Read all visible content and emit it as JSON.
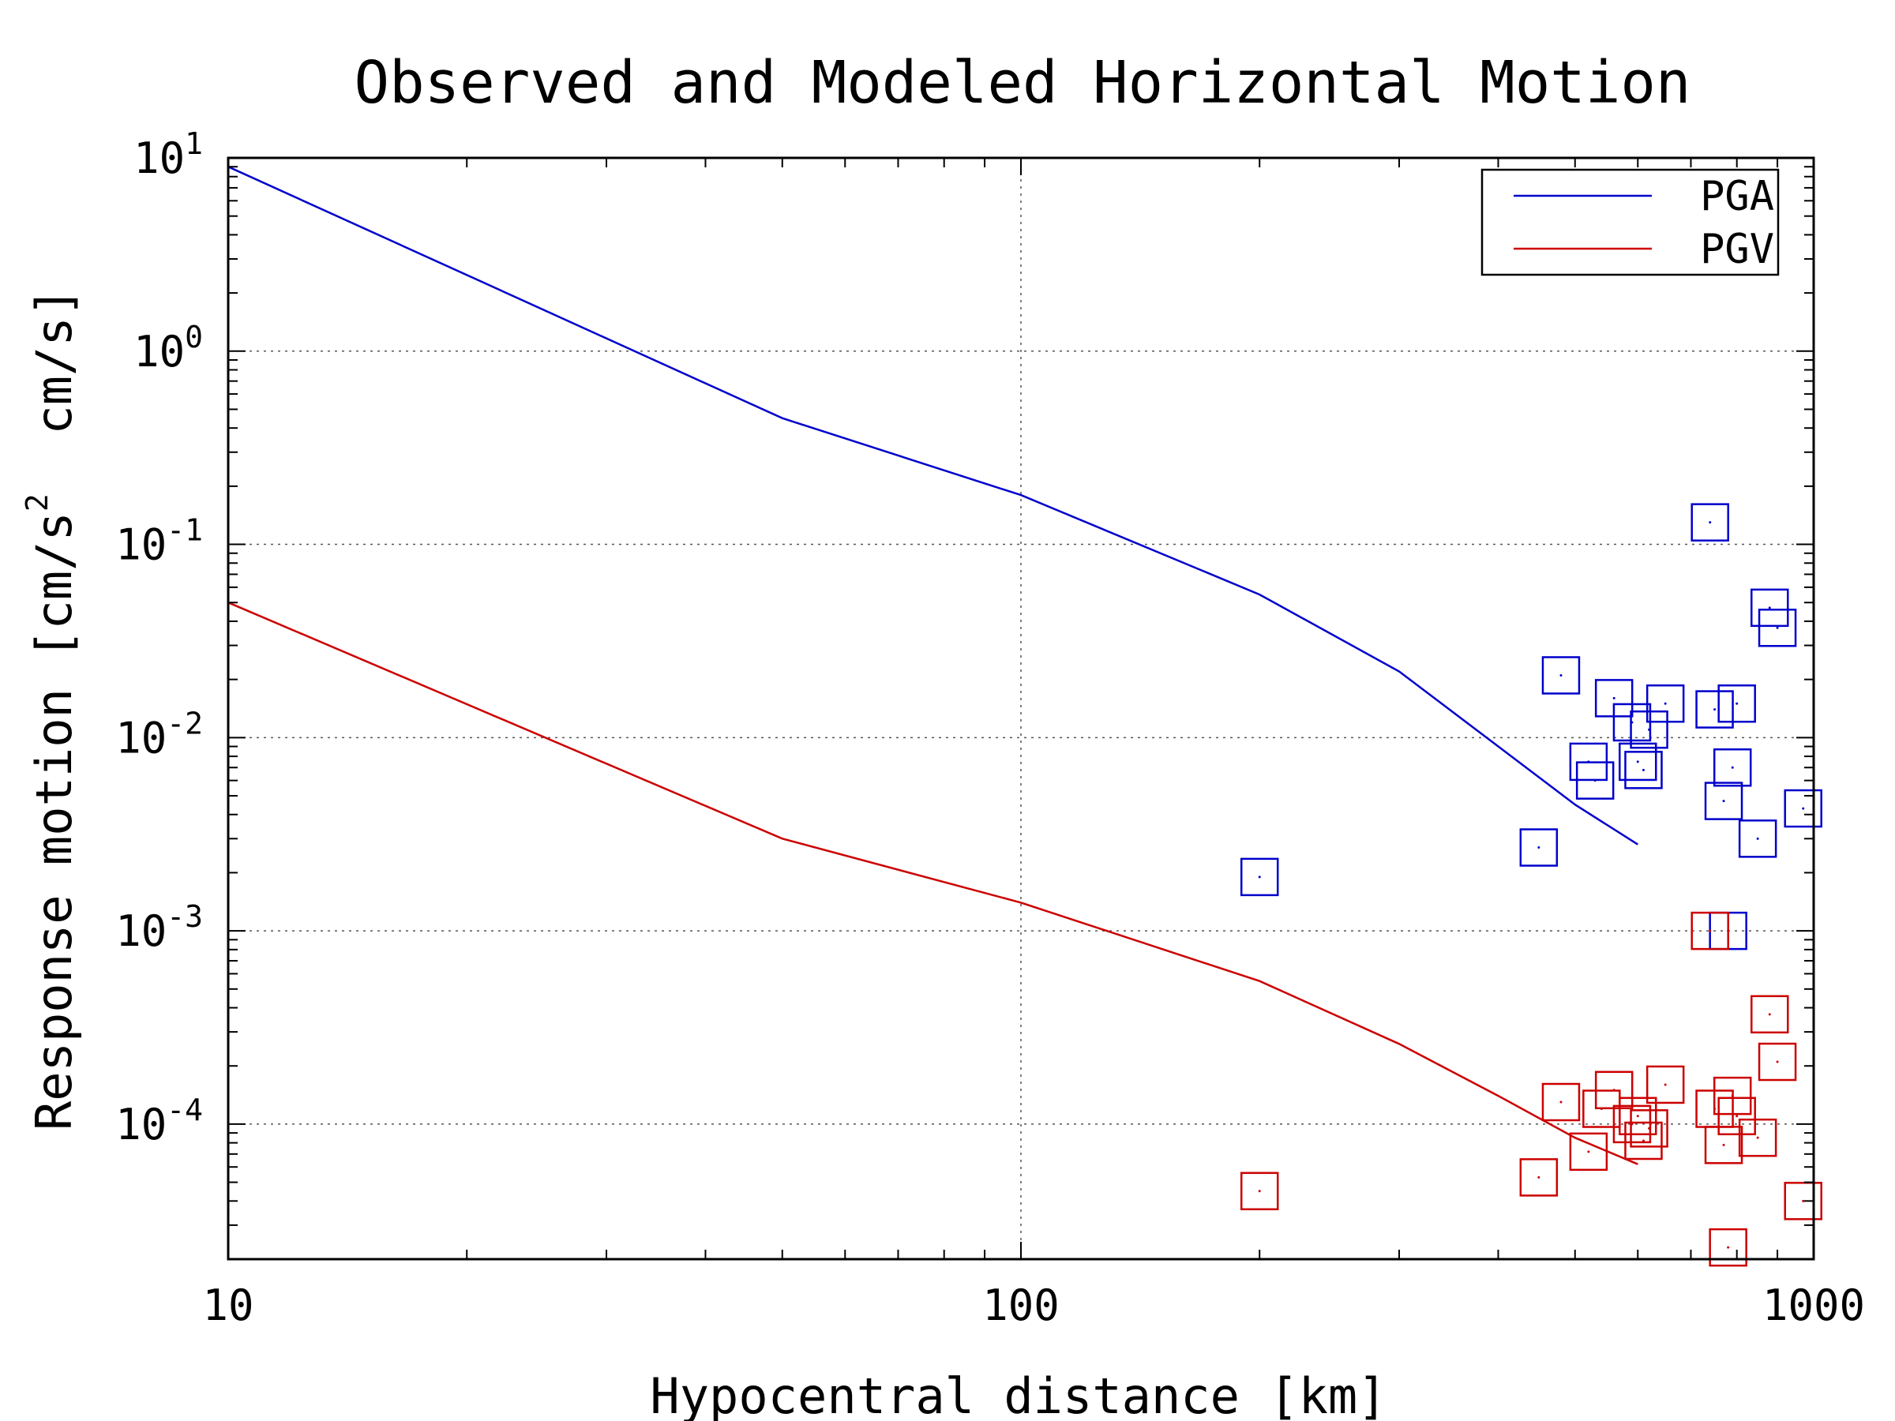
{
  "chart_data": {
    "type": "scatter",
    "title": "Observed and Modeled Horizontal Motion",
    "xlabel": "Hypocentral distance [km]",
    "ylabel": "Response motion [cm/s^2  cm/s]",
    "ylabel_parts": {
      "prefix": "Response motion [cm/s",
      "sup": "2",
      "suffix": "  cm/s]"
    },
    "x_scale": "log",
    "y_scale": "log",
    "xlim": [
      10,
      1000
    ],
    "ylim": [
      2e-05,
      10
    ],
    "grid": true,
    "legend_position": "top-right",
    "x_ticks": [
      {
        "value": 10,
        "label": "10"
      },
      {
        "value": 100,
        "label": "100"
      },
      {
        "value": 1000,
        "label": "1000"
      }
    ],
    "y_ticks": [
      {
        "value": 10,
        "base": "10",
        "exp": "1"
      },
      {
        "value": 1,
        "base": "10",
        "exp": "0"
      },
      {
        "value": 0.1,
        "base": "10",
        "exp": "-1"
      },
      {
        "value": 0.01,
        "base": "10",
        "exp": "-2"
      },
      {
        "value": 0.001,
        "base": "10",
        "exp": "-3"
      },
      {
        "value": 0.0001,
        "base": "10",
        "exp": "-4"
      }
    ],
    "series": [
      {
        "name": "PGA",
        "color": "#0000cc",
        "model_curve": {
          "x": [
            10,
            50,
            100,
            200,
            300,
            400,
            500,
            600
          ],
          "y": [
            9,
            0.45,
            0.18,
            0.055,
            0.022,
            0.009,
            0.0045,
            0.0028
          ]
        },
        "observed": {
          "x": [
            200,
            450,
            480,
            520,
            530,
            560,
            590,
            600,
            610,
            620,
            650,
            740,
            750,
            770,
            780,
            790,
            800,
            850,
            880,
            900,
            970
          ],
          "y": [
            0.0019,
            0.0027,
            0.021,
            0.0075,
            0.006,
            0.016,
            0.012,
            0.0075,
            0.0068,
            0.011,
            0.015,
            0.13,
            0.014,
            0.0047,
            0.001,
            0.007,
            0.015,
            0.003,
            0.047,
            0.037,
            0.0043
          ]
        }
      },
      {
        "name": "PGV",
        "color": "#cc0000",
        "model_curve": {
          "x": [
            10,
            50,
            100,
            200,
            300,
            400,
            500,
            600
          ],
          "y": [
            0.05,
            0.003,
            0.0014,
            0.00055,
            0.00026,
            0.00014,
            8.5e-05,
            6.2e-05
          ]
        },
        "observed": {
          "x": [
            200,
            450,
            480,
            520,
            540,
            560,
            590,
            600,
            610,
            620,
            650,
            740,
            750,
            770,
            780,
            790,
            800,
            850,
            880,
            900,
            970
          ],
          "y": [
            4.5e-05,
            5.3e-05,
            0.00013,
            7.2e-05,
            0.00012,
            0.00015,
            0.0001,
            0.00011,
            8.2e-05,
            9.5e-05,
            0.00016,
            0.001,
            0.00012,
            7.8e-05,
            2.3e-05,
            0.00014,
            0.00011,
            8.5e-05,
            0.00037,
            0.00021,
            4e-05
          ]
        }
      }
    ]
  }
}
